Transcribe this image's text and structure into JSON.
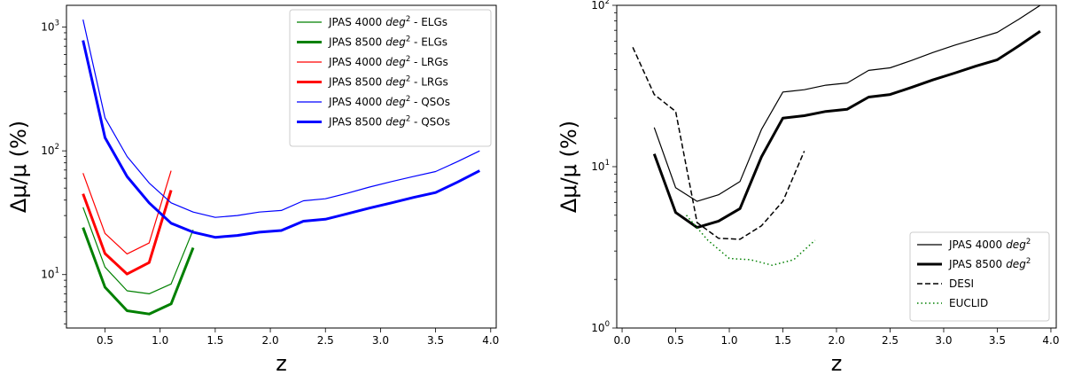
{
  "chart_data": [
    {
      "type": "line",
      "xlabel": "z",
      "ylabel": "Δμ/μ (%)",
      "yscale": "log",
      "xlim": [
        0.15,
        4.05
      ],
      "ylim": [
        3.7,
        1500
      ],
      "xticks": [
        "0.5",
        "1.0",
        "1.5",
        "2.0",
        "2.5",
        "3.0",
        "3.5",
        "4.0"
      ],
      "yticks": [
        {
          "value": 10,
          "base": "10",
          "exp": "1"
        },
        {
          "value": 100,
          "base": "10",
          "exp": "2"
        },
        {
          "value": 1000,
          "base": "10",
          "exp": "3"
        }
      ],
      "legend_position": "top-right",
      "series": [
        {
          "name": "JPAS 4000",
          "name_unit": "deg",
          "name_exp": "2",
          "name_suffix": " - ELGs",
          "color": "#008000",
          "width": 1.2,
          "dash": "",
          "x": [
            0.3,
            0.5,
            0.7,
            0.9,
            1.1,
            1.3
          ],
          "y": [
            35,
            11.5,
            7.4,
            7.0,
            8.4,
            23
          ]
        },
        {
          "name": "JPAS 8500",
          "name_unit": "deg",
          "name_exp": "2",
          "name_suffix": " - ELGs",
          "color": "#008000",
          "width": 3,
          "dash": "",
          "x": [
            0.3,
            0.5,
            0.7,
            0.9,
            1.1,
            1.3
          ],
          "y": [
            24,
            7.9,
            5.1,
            4.8,
            5.8,
            16.5
          ]
        },
        {
          "name": "JPAS 4000",
          "name_unit": "deg",
          "name_exp": "2",
          "name_suffix": " - LRGs",
          "color": "#ff0000",
          "width": 1.2,
          "dash": "",
          "x": [
            0.3,
            0.5,
            0.7,
            0.9,
            1.1
          ],
          "y": [
            66,
            21.5,
            14.7,
            18,
            69
          ]
        },
        {
          "name": "JPAS 8500",
          "name_unit": "deg",
          "name_exp": "2",
          "name_suffix": " - LRGs",
          "color": "#ff0000",
          "width": 3,
          "dash": "",
          "x": [
            0.3,
            0.5,
            0.7,
            0.9,
            1.1
          ],
          "y": [
            45,
            14.8,
            10.1,
            12.5,
            48
          ]
        },
        {
          "name": "JPAS 4000",
          "name_unit": "deg",
          "name_exp": "2",
          "name_suffix": " - QSOs",
          "color": "#0000ff",
          "width": 1.2,
          "dash": "",
          "x": [
            0.3,
            0.5,
            0.7,
            0.9,
            1.1,
            1.3,
            1.5,
            1.7,
            1.9,
            2.1,
            2.3,
            2.5,
            2.7,
            2.9,
            3.1,
            3.3,
            3.5,
            3.7,
            3.9
          ],
          "y": [
            1150,
            185,
            90,
            55,
            38,
            32,
            29,
            30,
            32,
            33,
            39.5,
            41,
            45.5,
            51,
            56.5,
            62,
            68,
            82,
            100
          ]
        },
        {
          "name": "JPAS 8500",
          "name_unit": "deg",
          "name_exp": "2",
          "name_suffix": " - QSOs",
          "color": "#0000ff",
          "width": 3,
          "dash": "",
          "x": [
            0.3,
            0.5,
            0.7,
            0.9,
            1.1,
            1.3,
            1.5,
            1.7,
            1.9,
            2.1,
            2.3,
            2.5,
            2.7,
            2.9,
            3.1,
            3.3,
            3.5,
            3.7,
            3.9
          ],
          "y": [
            780,
            128,
            62,
            38,
            26,
            22,
            20,
            20.7,
            22,
            22.7,
            27,
            28,
            31,
            34.5,
            38,
            42,
            46,
            56,
            69
          ]
        }
      ]
    },
    {
      "type": "line",
      "xlabel": "z",
      "ylabel": "Δμ/μ (%)",
      "yscale": "log",
      "xlim": [
        -0.05,
        4.05
      ],
      "ylim": [
        1,
        100
      ],
      "xticks": [
        "0.0",
        "0.5",
        "1.0",
        "1.5",
        "2.0",
        "2.5",
        "3.0",
        "3.5",
        "4.0"
      ],
      "yticks": [
        {
          "value": 1,
          "base": "10",
          "exp": "0"
        },
        {
          "value": 10,
          "base": "10",
          "exp": "1"
        },
        {
          "value": 100,
          "base": "10",
          "exp": "2"
        }
      ],
      "legend_position": "bottom-right",
      "series": [
        {
          "name": "JPAS 4000",
          "name_unit": "deg",
          "name_exp": "2",
          "name_suffix": "",
          "color": "#000000",
          "width": 1.2,
          "dash": "",
          "x": [
            0.3,
            0.5,
            0.7,
            0.9,
            1.1,
            1.3,
            1.5,
            1.7,
            1.9,
            2.1,
            2.3,
            2.5,
            2.7,
            2.9,
            3.1,
            3.3,
            3.5,
            3.7,
            3.9
          ],
          "y": [
            17.5,
            7.4,
            6.1,
            6.7,
            8.1,
            17,
            29,
            30,
            32,
            33,
            39.5,
            41,
            45.5,
            51,
            56.5,
            62,
            68,
            82,
            100
          ]
        },
        {
          "name": "JPAS 8500",
          "name_unit": "deg",
          "name_exp": "2",
          "name_suffix": "",
          "color": "#000000",
          "width": 3,
          "dash": "",
          "x": [
            0.3,
            0.5,
            0.7,
            0.9,
            1.1,
            1.3,
            1.5,
            1.7,
            1.9,
            2.1,
            2.3,
            2.5,
            2.7,
            2.9,
            3.1,
            3.3,
            3.5,
            3.7,
            3.9
          ],
          "y": [
            12,
            5.2,
            4.2,
            4.6,
            5.5,
            11.5,
            20,
            20.7,
            22,
            22.7,
            27,
            28,
            31,
            34.5,
            38,
            42,
            46,
            56,
            69
          ]
        },
        {
          "name": "DESI",
          "name_unit": "",
          "name_exp": "",
          "name_suffix": "",
          "color": "#000000",
          "width": 1.5,
          "dash": "6,3",
          "x": [
            0.1,
            0.3,
            0.5,
            0.7,
            0.9,
            1.1,
            1.3,
            1.5,
            1.7
          ],
          "y": [
            55,
            28,
            22,
            4.5,
            3.6,
            3.55,
            4.3,
            6.1,
            12.5
          ]
        },
        {
          "name": "EUCLID",
          "name_unit": "",
          "name_exp": "",
          "name_suffix": "",
          "color": "#008000",
          "width": 1.5,
          "dash": "1.5,3",
          "x": [
            0.6,
            0.8,
            1.0,
            1.2,
            1.4,
            1.6,
            1.8
          ],
          "y": [
            5.0,
            3.5,
            2.7,
            2.65,
            2.45,
            2.65,
            3.5
          ]
        }
      ]
    }
  ]
}
